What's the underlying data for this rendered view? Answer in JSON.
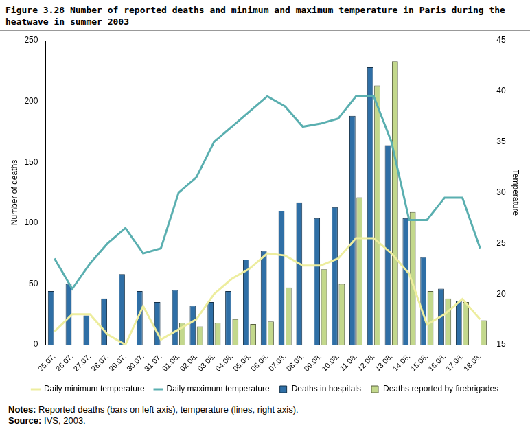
{
  "chart_data": {
    "type": "bar",
    "title": "Figure 3.28  Number of reported deaths and minimum and maximum temperature in Paris during the heatwave in summer 2003",
    "notes": "Notes: Reported deaths (bars on left axis), temperature (lines, right axis).",
    "source": "Source: IVS, 2003.",
    "y_label": "Number of deaths",
    "y2_label": "Temperature",
    "categories": [
      "25.07.",
      "26.07.",
      "27.07.",
      "28.07.",
      "29.07.",
      "30.07.",
      "31.07.",
      "01.08.",
      "02.08.",
      "03.08.",
      "04.08.",
      "05.08.",
      "06.08.",
      "07.08.",
      "08.08.",
      "09.08.",
      "10.08.",
      "11.08.",
      "12.08.",
      "13.08.",
      "14.08.",
      "15.08.",
      "16.08.",
      "17.08.",
      "18.08."
    ],
    "series": [
      {
        "name": "Deaths in hospitals",
        "type": "bar",
        "axis": "y",
        "color": "#2f6fa6",
        "values": [
          44,
          50,
          24,
          38,
          58,
          44,
          35,
          45,
          32,
          35,
          44,
          70,
          77,
          110,
          117,
          104,
          113,
          188,
          228,
          164,
          104,
          72,
          46,
          36,
          null
        ]
      },
      {
        "name": "Deaths reported by firebrigades",
        "type": "bar",
        "axis": "y",
        "color": "#c3d88c",
        "values": [
          null,
          null,
          null,
          null,
          null,
          null,
          null,
          18,
          15,
          18,
          21,
          17,
          19,
          47,
          null,
          62,
          50,
          121,
          213,
          233,
          109,
          44,
          38,
          35,
          20
        ]
      },
      {
        "name": "Daily minimum temperature",
        "type": "line",
        "axis": "y2",
        "color": "#eded9e",
        "values": [
          16.3,
          18,
          18,
          16,
          15,
          18.8,
          15.5,
          16.5,
          17.5,
          20,
          21.5,
          22.5,
          24,
          23.8,
          22.8,
          22.8,
          23.5,
          25.5,
          25.5,
          24,
          22,
          17,
          18,
          19.5,
          17.5
        ]
      },
      {
        "name": "Daily maximum temperature",
        "type": "line",
        "axis": "y2",
        "color": "#5aafb0",
        "values": [
          23.5,
          20.5,
          23,
          25,
          26.5,
          24,
          24.5,
          30,
          31.5,
          35,
          36.5,
          38,
          39.5,
          38.5,
          36.5,
          36.8,
          37.3,
          39.5,
          39.5,
          35,
          27.3,
          27.3,
          29.5,
          29.5,
          24.5
        ]
      }
    ],
    "ylim": [
      0,
      250
    ],
    "yticks": [
      0,
      50,
      100,
      150,
      200,
      250
    ],
    "y2lim": [
      15,
      45
    ],
    "y2ticks": [
      15,
      20,
      25,
      30,
      35,
      40,
      45
    ],
    "grid": false,
    "legend": "bottom"
  }
}
